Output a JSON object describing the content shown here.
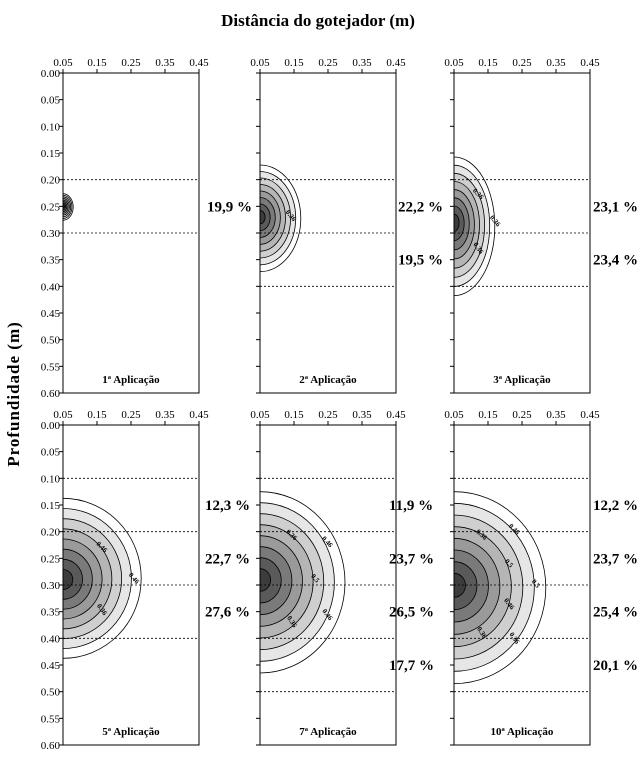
{
  "chart_data": {
    "type": "contour",
    "title": "Distância do gotejador (m)",
    "xlabel": "Distância do gotejador (m)",
    "ylabel": "Profundidade (m)",
    "x_ticks": [
      "0.05",
      "0.15",
      "0.25",
      "0.35",
      "0.45"
    ],
    "y_ticks": [
      "0.00",
      "0.05",
      "0.10",
      "0.15",
      "0.20",
      "0.25",
      "0.30",
      "0.35",
      "0.40",
      "0.45",
      "0.50",
      "0.55",
      "0.60"
    ],
    "xlim": [
      0.05,
      0.45
    ],
    "ylim": [
      0.0,
      0.6
    ],
    "panels": [
      {
        "label": "1ª Aplicação",
        "bands": [
          0.2,
          0.3
        ],
        "percentages": [
          {
            "depth": 0.25,
            "text": "19,9 %"
          }
        ],
        "front": {
          "depth_min": 0.23,
          "depth_max": 0.275,
          "x_max": 0.08,
          "center_depth": 0.25
        },
        "contour_labels": []
      },
      {
        "label": "2ª Aplicação",
        "bands": [
          0.2,
          0.3,
          0.4
        ],
        "percentages": [
          {
            "depth": 0.25,
            "text": "22,2 %"
          },
          {
            "depth": 0.35,
            "text": "19,5 %"
          }
        ],
        "front": {
          "depth_min": 0.18,
          "depth_max": 0.37,
          "x_max": 0.17,
          "center_depth": 0.27
        },
        "contour_labels": [
          "0.36"
        ]
      },
      {
        "label": "3ª Aplicação",
        "bands": [
          0.2,
          0.3,
          0.4
        ],
        "percentages": [
          {
            "depth": 0.25,
            "text": "23,1 %"
          },
          {
            "depth": 0.35,
            "text": "23,4 %"
          }
        ],
        "front": {
          "depth_min": 0.18,
          "depth_max": 0.41,
          "x_max": 0.17,
          "center_depth": 0.28
        },
        "contour_labels": [
          "0.36",
          "0.36",
          "0.36"
        ]
      },
      {
        "label": "5ª Aplicação",
        "bands": [
          0.1,
          0.2,
          0.3,
          0.4
        ],
        "percentages": [
          {
            "depth": 0.15,
            "text": "12,3 %"
          },
          {
            "depth": 0.25,
            "text": "22,7 %"
          },
          {
            "depth": 0.35,
            "text": "27,6 %"
          }
        ],
        "front": {
          "depth_min": 0.14,
          "depth_max": 0.43,
          "x_max": 0.28,
          "center_depth": 0.29
        },
        "contour_labels": [
          "0.46",
          "0.46",
          "0.36"
        ]
      },
      {
        "label": "7ª Aplicação",
        "bands": [
          0.1,
          0.2,
          0.3,
          0.4,
          0.5
        ],
        "percentages": [
          {
            "depth": 0.15,
            "text": "11,9 %"
          },
          {
            "depth": 0.25,
            "text": "23,7 %"
          },
          {
            "depth": 0.35,
            "text": "26,5 %"
          },
          {
            "depth": 0.45,
            "text": "17,7 %"
          }
        ],
        "front": {
          "depth_min": 0.14,
          "depth_max": 0.46,
          "x_max": 0.3,
          "center_depth": 0.29
        },
        "contour_labels": [
          "0.36",
          "0.46",
          "0.5",
          "0.46",
          "0.36"
        ]
      },
      {
        "label": "10ª Aplicação",
        "bands": [
          0.1,
          0.2,
          0.3,
          0.4,
          0.5
        ],
        "percentages": [
          {
            "depth": 0.15,
            "text": "12,2 %"
          },
          {
            "depth": 0.25,
            "text": "23,7 %"
          },
          {
            "depth": 0.35,
            "text": "25,4 %"
          },
          {
            "depth": 0.45,
            "text": "20,1 %"
          }
        ],
        "front": {
          "depth_min": 0.14,
          "depth_max": 0.48,
          "x_max": 0.32,
          "center_depth": 0.3
        },
        "contour_labels": [
          "0.36",
          "0.46",
          "0.5",
          "0.5",
          "0.46",
          "0.36",
          "0.36"
        ]
      }
    ],
    "fill_colors": [
      "#ffffff",
      "#e6e6e6",
      "#cfcfcf",
      "#b5b5b5",
      "#9a9a9a",
      "#7a7a7a",
      "#5a5a5a",
      "#3c3c3c"
    ]
  }
}
